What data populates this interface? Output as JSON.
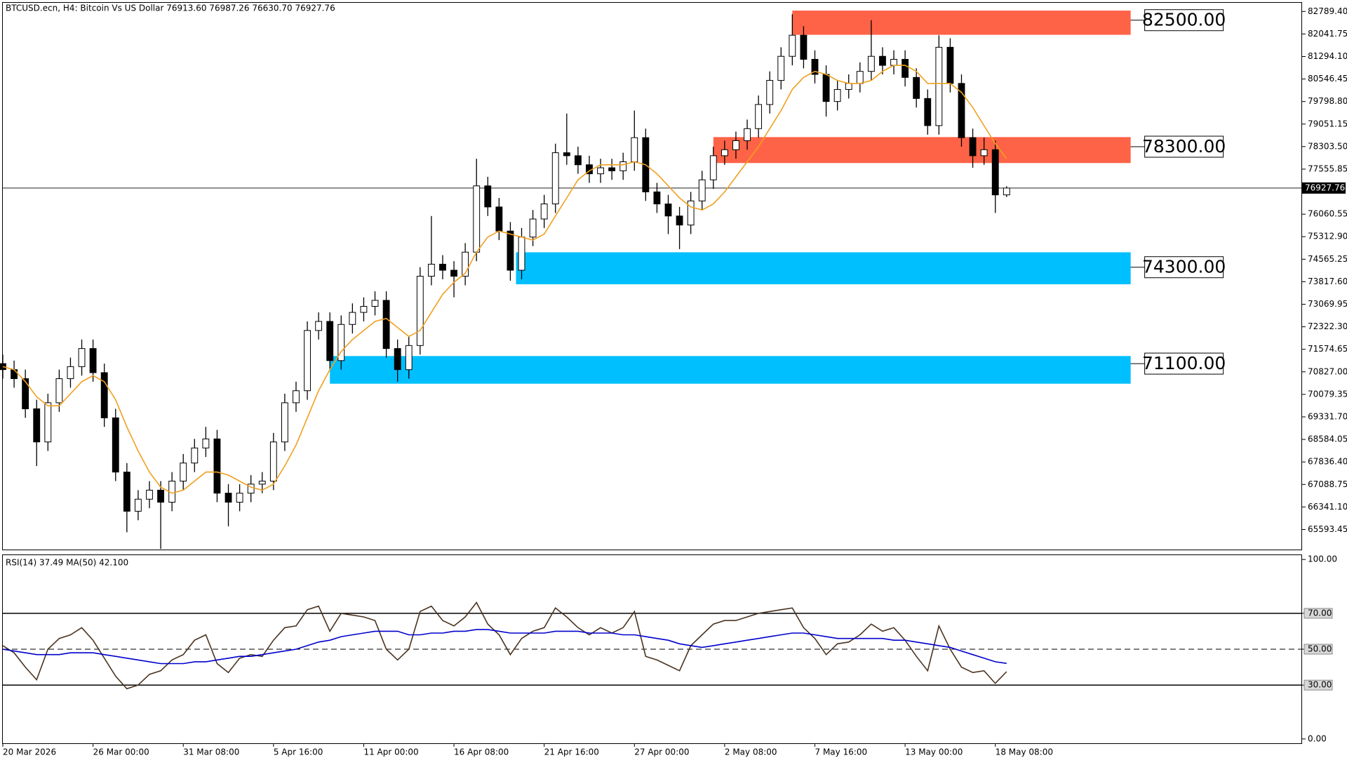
{
  "chart_data": [
    {
      "type": "candlestick",
      "title": "BTCUSD.ecn, H4:  Bitcoin Vs US Dollar  76913.60 76987.26 76630.70 76927.76",
      "color_up": "#ffffff",
      "color_down": "#000000",
      "open": [
        71100,
        70900,
        70600,
        69600,
        68500,
        69800,
        70600,
        71000,
        71600,
        70800,
        69300,
        67500,
        66200,
        66600,
        66900,
        66500,
        67200,
        67800,
        68300,
        68600,
        66800,
        66500,
        66800,
        67100,
        67200,
        68500,
        69800,
        70200,
        72200,
        72500,
        71200,
        72400,
        72800,
        73000,
        73200,
        71600,
        70900,
        71700,
        74000,
        74400,
        74200,
        74000,
        74800,
        77000,
        76300,
        75500,
        74200,
        75300,
        75900,
        76400,
        78100,
        78000,
        77700,
        77400,
        77600,
        77500,
        77800,
        78600,
        76800,
        76400,
        76000,
        75700,
        76500,
        77200,
        78000,
        78200,
        78500,
        78900,
        79700,
        80500,
        81300,
        82000,
        81200,
        80700,
        79800,
        80200,
        80400,
        80800,
        81300,
        81000,
        81200,
        80600,
        79900,
        79000,
        81600,
        80400,
        78600,
        78000,
        78200,
        76700
      ],
      "high": [
        71400,
        71200,
        70900,
        69900,
        70100,
        70900,
        71300,
        71900,
        71900,
        71100,
        69600,
        67800,
        66900,
        67200,
        67200,
        67500,
        68100,
        68600,
        69000,
        68900,
        67100,
        67100,
        67400,
        67500,
        68800,
        70100,
        70500,
        72500,
        72800,
        72800,
        72700,
        73100,
        73300,
        73500,
        73500,
        71900,
        72000,
        74300,
        76000,
        74700,
        74500,
        75100,
        77900,
        77300,
        76600,
        75800,
        75600,
        76200,
        76700,
        78400,
        79400,
        78300,
        78000,
        77900,
        77900,
        78100,
        79500,
        78900,
        77100,
        76700,
        76300,
        76800,
        77500,
        78300,
        78500,
        78800,
        79200,
        80000,
        80800,
        81600,
        82700,
        82300,
        81500,
        81000,
        80500,
        80700,
        81100,
        82500,
        81600,
        81500,
        81500,
        80900,
        80200,
        82000,
        81900,
        80700,
        78900,
        78600,
        78500,
        76987.26
      ],
      "low": [
        70600,
        70300,
        69300,
        67700,
        68200,
        69500,
        70300,
        70700,
        70500,
        69000,
        67200,
        65500,
        65900,
        66300,
        64950,
        66200,
        66900,
        67500,
        68000,
        66500,
        65700,
        66200,
        66500,
        66800,
        66900,
        68200,
        69500,
        69900,
        71900,
        70900,
        70900,
        72100,
        72500,
        72700,
        71300,
        70500,
        70600,
        71400,
        73700,
        73900,
        73300,
        73700,
        74500,
        76000,
        75200,
        73850,
        73900,
        75000,
        75600,
        76100,
        77700,
        77400,
        77100,
        77100,
        77200,
        77200,
        77500,
        76500,
        76100,
        75400,
        74900,
        75400,
        76200,
        76900,
        77700,
        77900,
        78200,
        78600,
        79400,
        80200,
        81000,
        80900,
        80400,
        79300,
        79500,
        79900,
        80100,
        80500,
        80700,
        80700,
        80300,
        79600,
        78700,
        78700,
        80100,
        78300,
        77600,
        77700,
        76100,
        76630.7
      ],
      "close": [
        70900,
        70600,
        69600,
        68500,
        69800,
        70600,
        71000,
        71600,
        70800,
        69300,
        67500,
        66200,
        66600,
        66900,
        66500,
        67200,
        67800,
        68300,
        68600,
        66800,
        66500,
        66800,
        67100,
        67200,
        68500,
        69800,
        70200,
        72200,
        72500,
        71200,
        72400,
        72800,
        73000,
        73200,
        71600,
        70900,
        71700,
        74000,
        74400,
        74200,
        74000,
        74800,
        77000,
        76300,
        75500,
        74200,
        75300,
        75900,
        76400,
        78100,
        78000,
        77700,
        77400,
        77600,
        77500,
        77800,
        78600,
        76800,
        76400,
        76000,
        75700,
        76500,
        77200,
        78000,
        78200,
        78500,
        78900,
        79700,
        80500,
        81300,
        82000,
        81200,
        80700,
        79800,
        80200,
        80400,
        80800,
        81300,
        81000,
        81200,
        80600,
        79900,
        79000,
        81600,
        80400,
        78600,
        78000,
        78200,
        76700,
        76927.76
      ],
      "lines": [
        {
          "color": "#f0a020",
          "values": [
            71000,
            70900,
            70500,
            70000,
            69700,
            69700,
            70100,
            70500,
            70700,
            70500,
            69900,
            69000,
            68200,
            67500,
            67000,
            66800,
            66900,
            67200,
            67500,
            67500,
            67400,
            67200,
            67000,
            66900,
            67100,
            67700,
            68400,
            69300,
            70200,
            70900,
            71500,
            71900,
            72200,
            72500,
            72600,
            72300,
            72000,
            72200,
            72800,
            73400,
            73800,
            74100,
            74800,
            75300,
            75500,
            75400,
            75300,
            75200,
            75400,
            76000,
            76600,
            77200,
            77500,
            77700,
            77700,
            77700,
            77800,
            77700,
            77400,
            77000,
            76600,
            76300,
            76200,
            76400,
            76800,
            77300,
            77800,
            78300,
            78900,
            79500,
            80200,
            80600,
            80800,
            80700,
            80500,
            80400,
            80400,
            80500,
            80800,
            81000,
            81000,
            80800,
            80400,
            80400,
            80400,
            80100,
            79600,
            79000,
            78400,
            77900
          ]
        }
      ],
      "zones": [
        {
          "label": "82500.00",
          "level": 82500,
          "top": 82818,
          "bottom": 82014,
          "start": 70,
          "end": 100,
          "color": "#ff6347"
        },
        {
          "label": "78300.00",
          "level": 78300,
          "top": 78619,
          "bottom": 77758,
          "start": 63,
          "end": 100,
          "color": "#ff6347"
        },
        {
          "label": "74300.00",
          "level": 74300,
          "top": 74795,
          "bottom": 73733,
          "start": 45.5,
          "end": 100,
          "color": "#00bfff"
        },
        {
          "label": "71100.00",
          "level": 71100,
          "top": 71351,
          "bottom": 70433,
          "start": 29,
          "end": 100,
          "color": "#00bfff"
        }
      ],
      "last_price": {
        "value": 76927.76,
        "label": "76927.76"
      },
      "xlim": [
        0,
        115.2
      ],
      "ylim": [
        64905,
        83076
      ],
      "yticks": [
        {
          "value": 82789.4,
          "label": "82789.40"
        },
        {
          "value": 82041.75,
          "label": "82041.75"
        },
        {
          "value": 81294.1,
          "label": "81294.10"
        },
        {
          "value": 80546.45,
          "label": "80546.45"
        },
        {
          "value": 79798.8,
          "label": "79798.80"
        },
        {
          "value": 79051.15,
          "label": "79051.15"
        },
        {
          "value": 78303.5,
          "label": "78303.50"
        },
        {
          "value": 77555.85,
          "label": "77555.85"
        },
        {
          "value": 76060.55,
          "label": "76060.55"
        },
        {
          "value": 75312.9,
          "label": "75312.90"
        },
        {
          "value": 74565.25,
          "label": "74565.25"
        },
        {
          "value": 73817.6,
          "label": "73817.60"
        },
        {
          "value": 73069.95,
          "label": "73069.95"
        },
        {
          "value": 72322.3,
          "label": "72322.30"
        },
        {
          "value": 71574.65,
          "label": "71574.65"
        },
        {
          "value": 70827,
          "label": "70827.00"
        },
        {
          "value": 70079.35,
          "label": "70079.35"
        },
        {
          "value": 69331.7,
          "label": "69331.70"
        },
        {
          "value": 68584.05,
          "label": "68584.05"
        },
        {
          "value": 67836.4,
          "label": "67836.40"
        },
        {
          "value": 67088.75,
          "label": "67088.75"
        },
        {
          "value": 66341.1,
          "label": "66341.10"
        },
        {
          "value": 65593.45,
          "label": "65593.45"
        }
      ]
    },
    {
      "type": "line",
      "title": "RSI(14) 37.49 MA(50) 42.100",
      "series": [
        {
          "color": "#4a3320",
          "values": [
            52,
            48,
            40,
            33,
            50,
            56,
            58,
            62,
            55,
            45,
            35,
            28,
            30,
            36,
            38,
            44,
            47,
            55,
            58,
            42,
            37,
            45,
            47,
            46,
            55,
            62,
            63,
            72,
            74,
            60,
            70,
            69,
            68,
            66,
            50,
            44,
            50,
            71,
            74,
            66,
            63,
            68,
            76,
            64,
            58,
            47,
            56,
            60,
            62,
            73,
            68,
            62,
            58,
            62,
            59,
            62,
            71,
            46,
            44,
            41,
            38,
            52,
            58,
            64,
            66,
            66,
            68,
            70,
            71,
            72,
            73,
            62,
            56,
            47,
            53,
            54,
            58,
            64,
            60,
            62,
            55,
            46,
            38,
            63,
            50,
            40,
            37,
            38,
            31,
            37.49
          ]
        },
        {
          "color": "#0000cd",
          "values": [
            50,
            49,
            48,
            47,
            47,
            47,
            48,
            48,
            48,
            47,
            46,
            45,
            44,
            43,
            42,
            42,
            42,
            43,
            43,
            44,
            45,
            46,
            46,
            47,
            48,
            49,
            50,
            52,
            54,
            55,
            57,
            58,
            59,
            60,
            60,
            60,
            58,
            58,
            59,
            59,
            60,
            60,
            61,
            61,
            60,
            59,
            59,
            59,
            59,
            60,
            60,
            60,
            59,
            59,
            59,
            58,
            58,
            57,
            56,
            55,
            53,
            52,
            51,
            52,
            53,
            54,
            55,
            56,
            57,
            58,
            59,
            59,
            58,
            57,
            56,
            56,
            56,
            56,
            56,
            55,
            55,
            54,
            53,
            52,
            51,
            49,
            47,
            45,
            43,
            42.1
          ]
        }
      ],
      "xlim": [
        0,
        115.2
      ],
      "ylim": [
        -2.4,
        102.4
      ],
      "yticks": [
        {
          "value": 100,
          "label": "100.00"
        },
        {
          "value": 70,
          "label": "70.00",
          "line": "solid",
          "boxed": true
        },
        {
          "value": 50,
          "label": "50.00",
          "line": "dashed",
          "boxed": true
        },
        {
          "value": 30,
          "label": "30.00",
          "line": "solid",
          "boxed": true
        },
        {
          "value": 0,
          "label": "0.00"
        }
      ],
      "xticks": [
        {
          "value": 0,
          "label": "20 Mar 2026"
        },
        {
          "value": 8,
          "label": "26 Mar 00:00"
        },
        {
          "value": 16,
          "label": "31 Mar 08:00"
        },
        {
          "value": 24,
          "label": "5 Apr 16:00"
        },
        {
          "value": 32,
          "label": "11 Apr 00:00"
        },
        {
          "value": 40,
          "label": "16 Apr 08:00"
        },
        {
          "value": 48,
          "label": "21 Apr 16:00"
        },
        {
          "value": 56,
          "label": "27 Apr 00:00"
        },
        {
          "value": 64,
          "label": "2 May 08:00"
        },
        {
          "value": 72,
          "label": "7 May 16:00"
        },
        {
          "value": 80,
          "label": "13 May 00:00"
        },
        {
          "value": 88,
          "label": "18 May 08:00"
        }
      ]
    }
  ]
}
